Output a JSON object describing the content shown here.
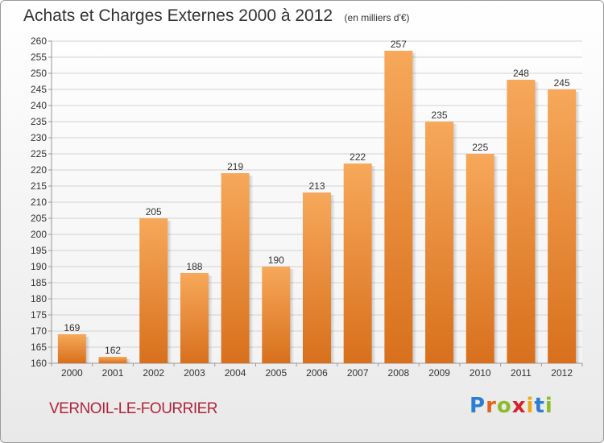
{
  "title": "Achats et Charges Externes 2000 à 2012",
  "unit": "(en milliers d'€)",
  "commune": "VERNOIL-LE-FOURRIER",
  "logo": "Proxiti",
  "colors": {
    "bar_light": "#f7a85a",
    "bar_dark": "#d8701c",
    "grid": "#d2d2d2",
    "commune_text": "#b0243a"
  },
  "chart_data": {
    "type": "bar",
    "categories": [
      "2000",
      "2001",
      "2002",
      "2003",
      "2004",
      "2005",
      "2006",
      "2007",
      "2008",
      "2009",
      "2010",
      "2011",
      "2012"
    ],
    "values": [
      169,
      162,
      205,
      188,
      219,
      190,
      213,
      222,
      257,
      235,
      225,
      248,
      245
    ],
    "ylim": [
      160,
      260
    ],
    "yticks": [
      160,
      165,
      170,
      175,
      180,
      185,
      190,
      195,
      200,
      205,
      210,
      215,
      220,
      225,
      230,
      235,
      240,
      245,
      250,
      255,
      260
    ],
    "grid": true,
    "data_labels": true
  }
}
